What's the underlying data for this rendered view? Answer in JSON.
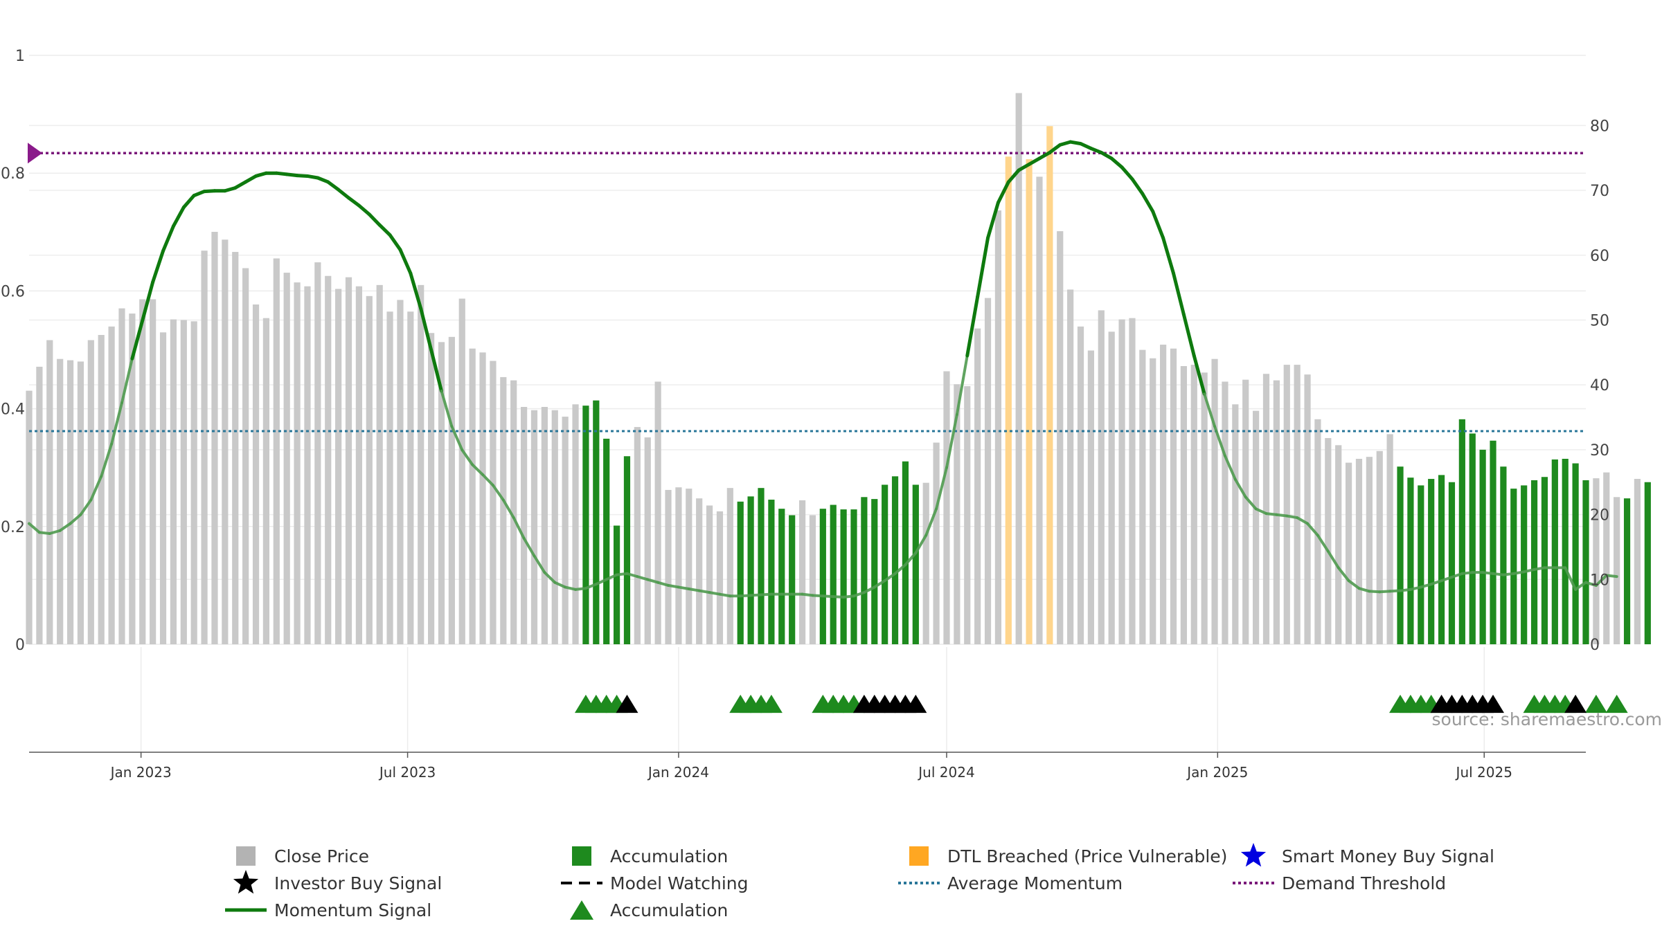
{
  "chart_data": {
    "type": "bar",
    "source_note": "source: sharemaestro.com",
    "left_axis": {
      "ylim": [
        0,
        1
      ],
      "ticks": [
        "0",
        "0.2",
        "0.4",
        "0.6",
        "0.8",
        "1"
      ]
    },
    "right_axis": {
      "ylim": [
        0,
        89
      ],
      "ticks": [
        "0",
        "10",
        "20",
        "30",
        "40",
        "50",
        "60",
        "70",
        "80"
      ]
    },
    "x_axis": {
      "start": "2022-10-17",
      "end": "2025-09-08",
      "ticks": [
        {
          "date": "2023-01-01",
          "label": "Jan 2023"
        },
        {
          "date": "2023-07-01",
          "label": "Jul 2023"
        },
        {
          "date": "2024-01-01",
          "label": "Jan 2024"
        },
        {
          "date": "2024-07-01",
          "label": "Jul 2024"
        },
        {
          "date": "2025-01-01",
          "label": "Jan 2025"
        },
        {
          "date": "2025-07-01",
          "label": "Jul 2025"
        }
      ]
    },
    "bar_series": {
      "start": "2022-10-17",
      "interval_days": 7,
      "values": [
        39.1,
        42.8,
        46.9,
        44.0,
        43.8,
        43.6,
        46.9,
        47.7,
        49.0,
        51.8,
        51.0,
        53.2,
        53.2,
        48.1,
        50.1,
        50.0,
        49.8,
        60.7,
        63.6,
        62.4,
        60.5,
        58.0,
        52.4,
        50.3,
        59.5,
        57.3,
        55.8,
        55.2,
        58.9,
        56.8,
        54.8,
        56.6,
        55.2,
        53.7,
        55.4,
        51.3,
        53.1,
        51.3,
        55.4,
        48.0,
        46.6,
        47.4,
        53.3,
        45.6,
        45.0,
        43.7,
        41.2,
        40.7,
        36.6,
        36.1,
        36.6,
        36.1,
        35.1,
        37.0,
        36.8,
        37.6,
        31.7,
        18.3,
        29.0,
        33.5,
        31.9,
        40.5,
        23.8,
        24.2,
        24.0,
        22.5,
        21.4,
        20.5,
        24.1,
        22.0,
        22.8,
        24.1,
        22.3,
        20.9,
        19.9,
        22.2,
        19.9,
        20.9,
        21.5,
        20.8,
        20.8,
        22.7,
        22.4,
        24.6,
        25.9,
        28.2,
        24.6,
        24.9,
        31.1,
        42.1,
        40.1,
        39.8,
        48.7,
        53.4,
        66.9,
        75.2,
        85.0,
        74.8,
        72.1,
        79.9,
        63.7,
        54.7,
        49.0,
        45.3,
        51.5,
        48.2,
        50.1,
        50.3,
        45.4,
        44.1,
        46.2,
        45.6,
        42.9,
        43.1,
        41.9,
        44.0,
        40.5,
        37.0,
        40.8,
        36.0,
        41.7,
        40.7,
        43.1,
        43.1,
        41.6,
        34.7,
        31.8,
        30.7,
        28.0,
        28.6,
        28.9,
        29.8,
        32.4,
        27.4,
        25.7,
        24.5,
        25.5,
        26.1,
        25.0,
        34.7,
        32.5,
        30.0,
        31.4,
        27.4,
        24.0,
        24.5,
        25.3,
        25.8,
        28.5,
        28.6,
        27.9,
        25.3,
        25.6,
        26.5,
        22.7,
        22.5,
        25.5,
        25.0
      ],
      "categories": {
        "accumulation": [
          [
            54,
            58
          ],
          [
            69,
            74
          ],
          [
            77,
            86
          ],
          [
            133,
            145
          ],
          [
            146,
            151
          ],
          [
            155,
            155
          ],
          [
            157,
            157
          ]
        ],
        "dtl_breached": [
          [
            95,
            95
          ],
          [
            97,
            97
          ],
          [
            99,
            99
          ]
        ]
      }
    },
    "momentum_series": {
      "start": "2022-10-17",
      "interval_days": 7,
      "values": [
        0.205,
        0.19,
        0.188,
        0.193,
        0.205,
        0.22,
        0.245,
        0.285,
        0.34,
        0.41,
        0.485,
        0.55,
        0.615,
        0.668,
        0.71,
        0.742,
        0.762,
        0.769,
        0.77,
        0.77,
        0.775,
        0.785,
        0.795,
        0.8,
        0.8,
        0.798,
        0.796,
        0.795,
        0.792,
        0.785,
        0.772,
        0.758,
        0.745,
        0.73,
        0.712,
        0.695,
        0.67,
        0.63,
        0.57,
        0.5,
        0.43,
        0.37,
        0.33,
        0.305,
        0.288,
        0.27,
        0.245,
        0.215,
        0.18,
        0.15,
        0.122,
        0.105,
        0.097,
        0.093,
        0.095,
        0.102,
        0.11,
        0.118,
        0.12,
        0.115,
        0.11,
        0.105,
        0.1,
        0.097,
        0.094,
        0.091,
        0.088,
        0.085,
        0.082,
        0.082,
        0.083,
        0.084,
        0.085,
        0.085,
        0.085,
        0.085,
        0.083,
        0.082,
        0.081,
        0.08,
        0.082,
        0.088,
        0.097,
        0.108,
        0.12,
        0.135,
        0.155,
        0.185,
        0.23,
        0.3,
        0.39,
        0.49,
        0.59,
        0.69,
        0.75,
        0.785,
        0.805,
        0.815,
        0.825,
        0.835,
        0.848,
        0.853,
        0.85,
        0.842,
        0.835,
        0.825,
        0.81,
        0.79,
        0.765,
        0.735,
        0.69,
        0.63,
        0.56,
        0.49,
        0.425,
        0.37,
        0.32,
        0.28,
        0.25,
        0.23,
        0.222,
        0.22,
        0.218,
        0.215,
        0.205,
        0.185,
        0.158,
        0.13,
        0.108,
        0.095,
        0.09,
        0.089,
        0.09,
        0.091,
        0.093,
        0.097,
        0.102,
        0.108,
        0.114,
        0.12,
        0.122,
        0.122,
        0.12,
        0.118,
        0.12,
        0.123,
        0.127,
        0.13,
        0.13,
        0.13,
        0.093,
        0.105,
        0.1,
        0.117,
        0.115
      ]
    },
    "average_momentum": 0.362,
    "demand_threshold": 0.834,
    "signal_markers": {
      "accumulation_weeks": [
        54,
        55,
        56,
        57,
        69,
        70,
        71,
        72,
        77,
        78,
        79,
        80,
        133,
        134,
        135,
        136,
        146,
        147,
        148,
        149,
        152,
        154
      ],
      "investor_weeks": [
        58,
        81,
        82,
        83,
        84,
        85,
        86,
        137,
        138,
        139,
        140,
        141,
        142,
        150
      ]
    },
    "legend": [
      {
        "label": "Close Price",
        "symbol": "square",
        "color": "#b3b3b3"
      },
      {
        "label": "Accumulation",
        "symbol": "square",
        "color": "#1e8a1e"
      },
      {
        "label": "DTL Breached (Price Vulnerable)",
        "symbol": "square",
        "color": "#ffa722"
      },
      {
        "label": "Smart Money Buy Signal",
        "symbol": "star",
        "color": "#0000e0"
      },
      {
        "label": "Investor Buy Signal",
        "symbol": "star",
        "color": "#000000"
      },
      {
        "label": "Model Watching",
        "symbol": "dash",
        "color": "#000000"
      },
      {
        "label": "Average Momentum",
        "symbol": "dotted",
        "color": "#2a7799"
      },
      {
        "label": "Demand Threshold",
        "symbol": "dotted",
        "color": "#7a1a7a"
      },
      {
        "label": "Momentum Signal",
        "symbol": "line",
        "color": "#0e7a0e"
      },
      {
        "label": "Accumulation",
        "symbol": "triangle",
        "color": "#1e8a1e"
      }
    ]
  }
}
